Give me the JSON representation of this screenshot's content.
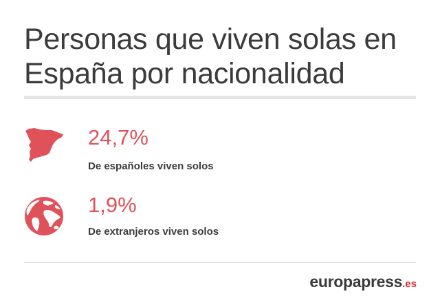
{
  "title": {
    "line1": "Personas que viven solas en",
    "line2": "España por nacionalidad"
  },
  "stats": [
    {
      "icon": "spain-map-icon",
      "value": "24,7%",
      "description": "De españoles viven solos"
    },
    {
      "icon": "globe-icon",
      "value": "1,9%",
      "description": "De extranjeros viven solos"
    }
  ],
  "logo": {
    "brand": "europapress",
    "tld": ".es"
  },
  "colors": {
    "accent": "#e0525a",
    "text": "#3b3b3b",
    "divider": "#e5e5e5",
    "logo_tld": "#d8262f"
  }
}
